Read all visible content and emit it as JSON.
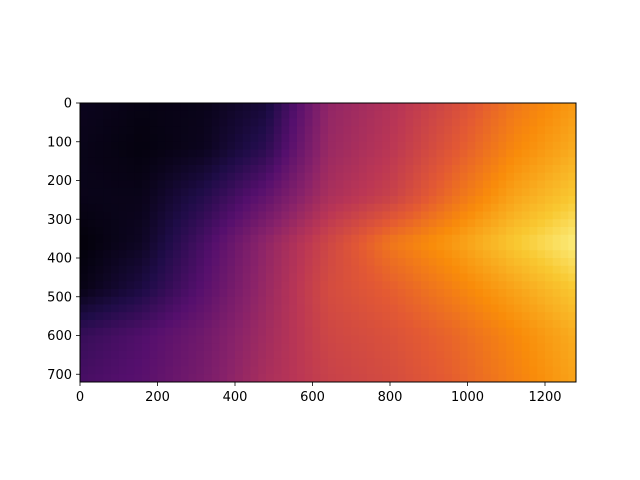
{
  "chart_data": {
    "type": "heatmap",
    "title": "",
    "xlabel": "",
    "ylabel": "",
    "colormap": "inferno",
    "image_width": 1280,
    "image_height": 720,
    "xlim": [
      0,
      1280
    ],
    "ylim": [
      720,
      0
    ],
    "x_ticks": [
      0,
      200,
      400,
      600,
      800,
      1000,
      1200
    ],
    "y_ticks": [
      0,
      100,
      200,
      300,
      400,
      500,
      600,
      700
    ],
    "grid": false,
    "legend": "none",
    "value_grid": {
      "note_x": [
        0,
        160,
        320,
        480,
        640,
        800,
        960,
        1120,
        1280
      ],
      "note_y": [
        0,
        120,
        240,
        360,
        480,
        600,
        720
      ],
      "values": [
        [
          0.05,
          0.03,
          0.04,
          0.1,
          0.4,
          0.48,
          0.58,
          0.7,
          0.78
        ],
        [
          0.04,
          0.02,
          0.05,
          0.16,
          0.42,
          0.5,
          0.62,
          0.74,
          0.82
        ],
        [
          0.04,
          0.04,
          0.14,
          0.28,
          0.46,
          0.54,
          0.68,
          0.8,
          0.88
        ],
        [
          0.01,
          0.06,
          0.22,
          0.4,
          0.56,
          0.7,
          0.78,
          0.88,
          0.96
        ],
        [
          0.03,
          0.12,
          0.26,
          0.42,
          0.58,
          0.64,
          0.72,
          0.8,
          0.88
        ],
        [
          0.18,
          0.24,
          0.32,
          0.44,
          0.56,
          0.6,
          0.66,
          0.74,
          0.82
        ],
        [
          0.22,
          0.26,
          0.34,
          0.46,
          0.54,
          0.58,
          0.64,
          0.72,
          0.8
        ]
      ]
    }
  },
  "axes": {
    "x_tick_labels": [
      "0",
      "200",
      "400",
      "600",
      "800",
      "1000",
      "1200"
    ],
    "y_tick_labels": [
      "0",
      "100",
      "200",
      "300",
      "400",
      "500",
      "600",
      "700"
    ]
  }
}
